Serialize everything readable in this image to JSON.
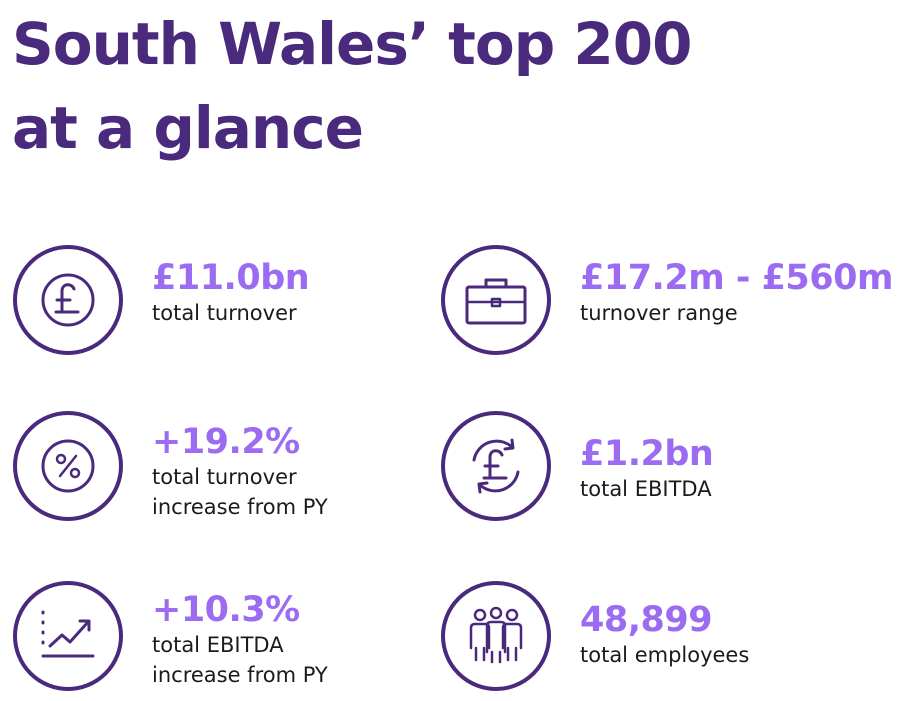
{
  "title": {
    "line1": "South Wales’ top 200",
    "line2": "at a glance"
  },
  "colors": {
    "title": "#4a2a7c",
    "icon": "#4a2a7c",
    "value": "#9b6cf2",
    "label": "#1b1b1b"
  },
  "stats": [
    {
      "icon": "pound-icon",
      "value": "£11.0bn",
      "label_lines": [
        "total turnover"
      ]
    },
    {
      "icon": "briefcase-icon",
      "value": "£17.2m - £560m",
      "label_lines": [
        "turnover range"
      ]
    },
    {
      "icon": "percent-icon",
      "value": "+19.2%",
      "label_lines": [
        "total turnover",
        "increase from PY"
      ]
    },
    {
      "icon": "pound-cycle-icon",
      "value": "£1.2bn",
      "label_lines": [
        "total EBITDA"
      ]
    },
    {
      "icon": "growth-chart-icon",
      "value": "+10.3%",
      "label_lines": [
        "total EBITDA",
        "increase from PY"
      ]
    },
    {
      "icon": "people-icon",
      "value": "48,899",
      "label_lines": [
        "total employees"
      ]
    }
  ]
}
